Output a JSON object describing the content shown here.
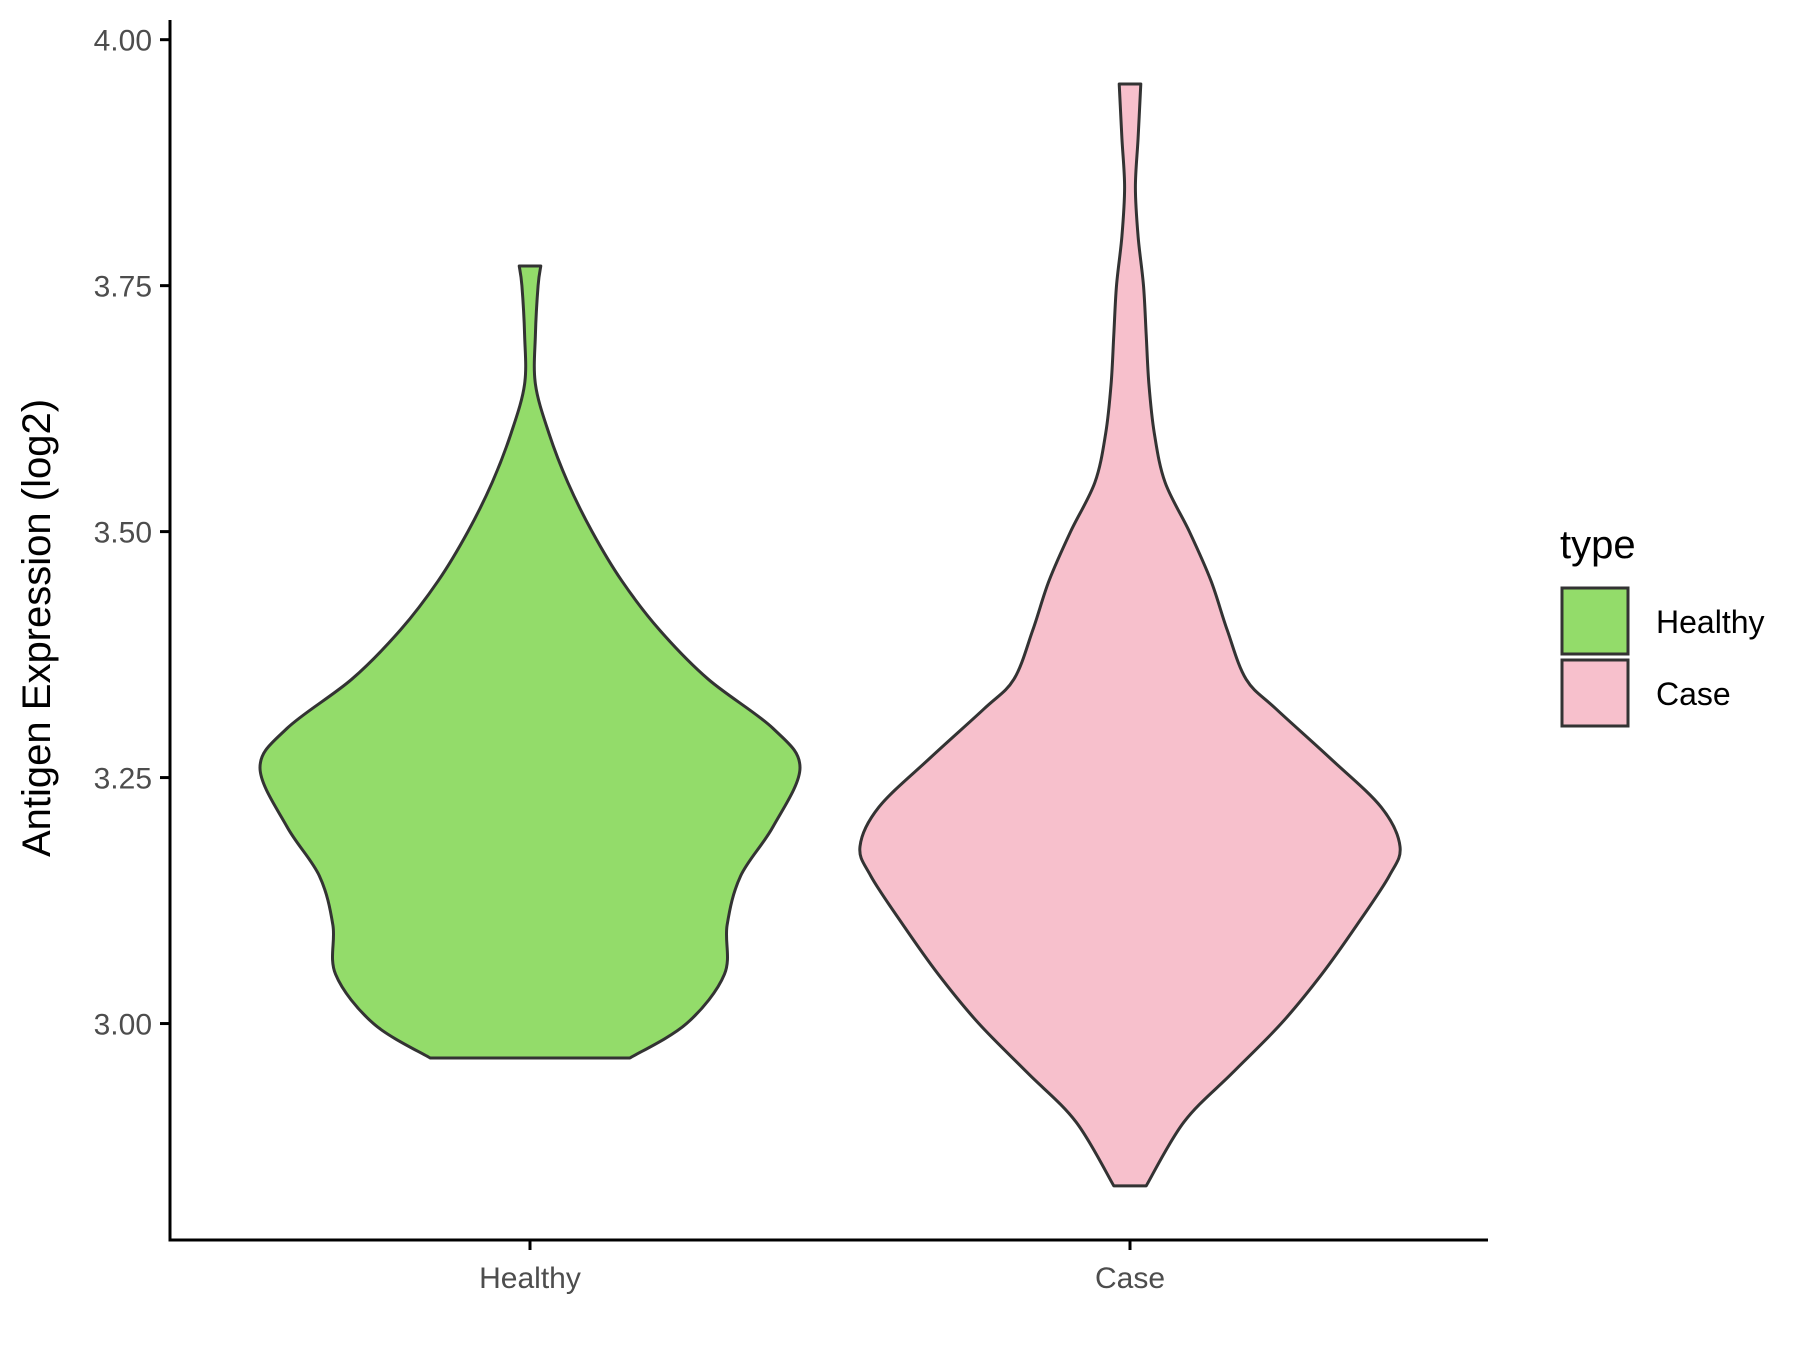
{
  "chart_data": {
    "type": "violin",
    "title": "",
    "xlabel": "",
    "ylabel": "Antigen Expression (log2)",
    "ylim": [
      2.78,
      4.02
    ],
    "y_ticks": [
      "3.00",
      "3.25",
      "3.50",
      "3.75",
      "4.00"
    ],
    "y_tick_values": [
      3.0,
      3.25,
      3.5,
      3.75,
      4.0
    ],
    "categories": [
      "Healthy",
      "Case"
    ],
    "grid": false,
    "legend": {
      "title": "type",
      "placement": "right",
      "entries": [
        {
          "label": "Healthy",
          "color": "#93dc6a"
        },
        {
          "label": "Case",
          "color": "#f7c0cc"
        }
      ]
    },
    "series": [
      {
        "category": "Healthy",
        "fill": "#93dc6a",
        "min": 2.965,
        "max": 3.77,
        "density_profile": [
          [
            2.965,
            0.37
          ],
          [
            3.0,
            0.58
          ],
          [
            3.05,
            0.72
          ],
          [
            3.1,
            0.73
          ],
          [
            3.15,
            0.78
          ],
          [
            3.2,
            0.9
          ],
          [
            3.26,
            1.0
          ],
          [
            3.3,
            0.9
          ],
          [
            3.35,
            0.66
          ],
          [
            3.4,
            0.48
          ],
          [
            3.45,
            0.34
          ],
          [
            3.5,
            0.23
          ],
          [
            3.55,
            0.14
          ],
          [
            3.6,
            0.07
          ],
          [
            3.65,
            0.02
          ],
          [
            3.7,
            0.02
          ],
          [
            3.75,
            0.03
          ],
          [
            3.77,
            0.04
          ]
        ]
      },
      {
        "category": "Case",
        "fill": "#f7c0cc",
        "min": 2.835,
        "max": 3.955,
        "density_profile": [
          [
            2.835,
            0.06
          ],
          [
            2.9,
            0.2
          ],
          [
            2.95,
            0.38
          ],
          [
            3.0,
            0.56
          ],
          [
            3.05,
            0.71
          ],
          [
            3.1,
            0.84
          ],
          [
            3.15,
            0.96
          ],
          [
            3.18,
            1.0
          ],
          [
            3.22,
            0.93
          ],
          [
            3.27,
            0.74
          ],
          [
            3.32,
            0.54
          ],
          [
            3.35,
            0.43
          ],
          [
            3.4,
            0.36
          ],
          [
            3.45,
            0.3
          ],
          [
            3.5,
            0.22
          ],
          [
            3.55,
            0.13
          ],
          [
            3.6,
            0.09
          ],
          [
            3.65,
            0.07
          ],
          [
            3.7,
            0.06
          ],
          [
            3.75,
            0.05
          ],
          [
            3.8,
            0.03
          ],
          [
            3.85,
            0.02
          ],
          [
            3.9,
            0.03
          ],
          [
            3.955,
            0.04
          ]
        ]
      }
    ]
  }
}
